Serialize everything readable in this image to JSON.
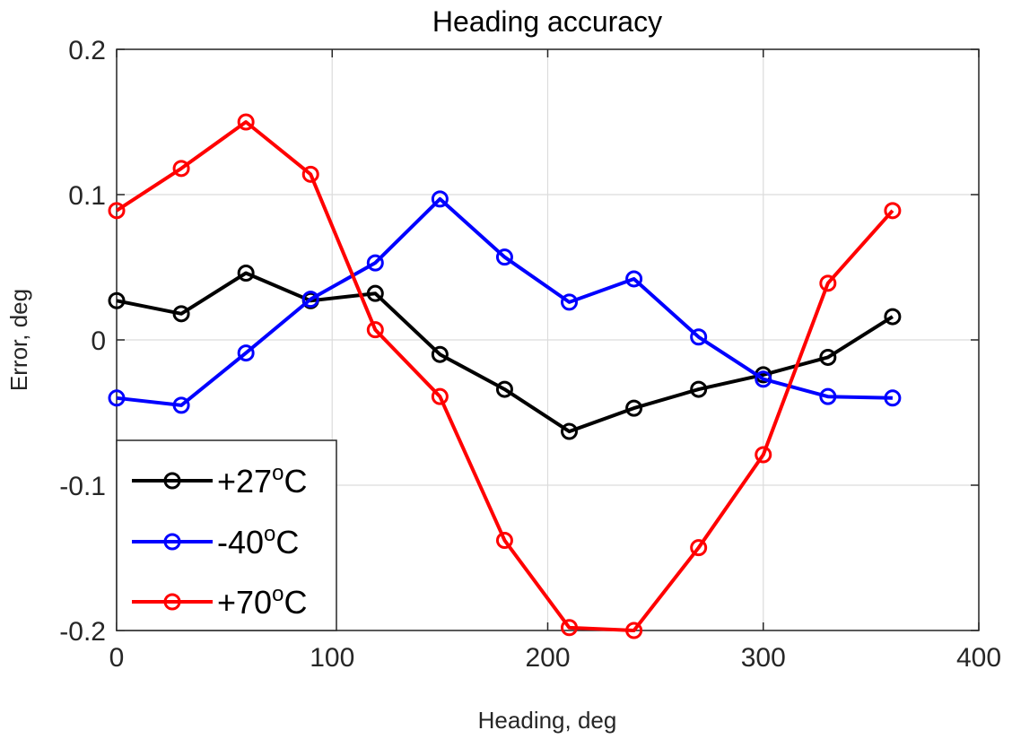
{
  "chart_data": {
    "type": "line",
    "title": "Heading accuracy",
    "xlabel": "Heading, deg",
    "ylabel": "Error, deg",
    "xlim": [
      0,
      400
    ],
    "ylim": [
      -0.2,
      0.2
    ],
    "xticks": [
      0,
      100,
      200,
      300,
      400
    ],
    "xtick_labels": [
      "0",
      "100",
      "200",
      "300",
      "400"
    ],
    "yticks": [
      -0.2,
      -0.1,
      0,
      0.1,
      0.2
    ],
    "ytick_labels": [
      "-0.2",
      "-0.1",
      "0",
      "0.1",
      "0.2"
    ],
    "grid": true,
    "legend_position": "bottom-left",
    "x": [
      0,
      30,
      60,
      90,
      120,
      150,
      180,
      210,
      240,
      270,
      300,
      330,
      360
    ],
    "series": [
      {
        "name": "+27°C",
        "label_main": "+27",
        "label_sup": "o",
        "label_unit": "C",
        "color": "#000000",
        "values": [
          0.027,
          0.018,
          0.046,
          0.027,
          0.032,
          -0.01,
          -0.034,
          -0.063,
          -0.047,
          -0.034,
          -0.024,
          -0.012,
          0.016
        ]
      },
      {
        "name": "-40°C",
        "label_main": "-40",
        "label_sup": "o",
        "label_unit": "C",
        "color": "#0000ff",
        "values": [
          -0.04,
          -0.045,
          -0.009,
          0.028,
          0.053,
          0.097,
          0.057,
          0.026,
          0.042,
          0.002,
          -0.027,
          -0.039,
          -0.04
        ]
      },
      {
        "name": "+70°C",
        "label_main": "+70",
        "label_sup": "o",
        "label_unit": "C",
        "color": "#ff0000",
        "values": [
          0.089,
          0.118,
          0.15,
          0.114,
          0.007,
          -0.039,
          -0.138,
          -0.198,
          -0.2,
          -0.143,
          -0.079,
          0.039,
          0.089
        ]
      }
    ]
  }
}
